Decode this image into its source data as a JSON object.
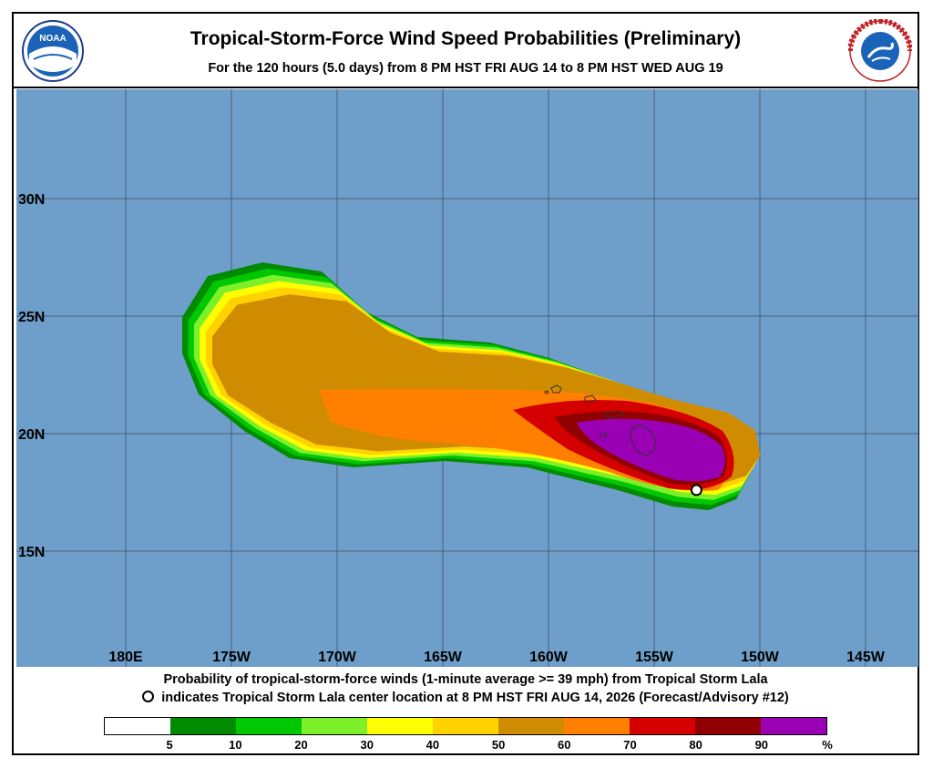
{
  "header": {
    "title": "Tropical-Storm-Force Wind Speed Probabilities (Preliminary)",
    "subtitle": "For the 120 hours (5.0 days) from 8 PM HST FRI AUG 14 to 8 PM HST WED AUG 19",
    "logo_left_text": "NOAA",
    "logo_right_text": "NATIONAL WEATHER SERVICE"
  },
  "map": {
    "ocean_color": "#6e9fca",
    "grid_color": "#4a5f78",
    "land_label": "HI",
    "lat_labels": [
      "30N",
      "25N",
      "20N",
      "15N"
    ],
    "lon_labels": [
      "180E",
      "175W",
      "170W",
      "165W",
      "160W",
      "155W",
      "150W",
      "145W"
    ],
    "storm_center": {
      "lat": 17.6,
      "lon": -153.0
    }
  },
  "footer": {
    "caption1": "Probability of tropical-storm-force winds (1-minute average >= 39 mph) from Tropical Storm Lala",
    "caption2": "indicates Tropical Storm Lala center location at 8 PM HST FRI AUG 14, 2026 (Forecast/Advisory #12)"
  },
  "legend": {
    "colors": [
      "#ffffff",
      "#008b00",
      "#00c800",
      "#7ef02a",
      "#ffff00",
      "#ffd200",
      "#d08c00",
      "#ff7f00",
      "#d40000",
      "#900000",
      "#9a00b4"
    ],
    "labels": [
      "5",
      "10",
      "20",
      "30",
      "40",
      "50",
      "60",
      "70",
      "80",
      "90",
      "%"
    ]
  }
}
